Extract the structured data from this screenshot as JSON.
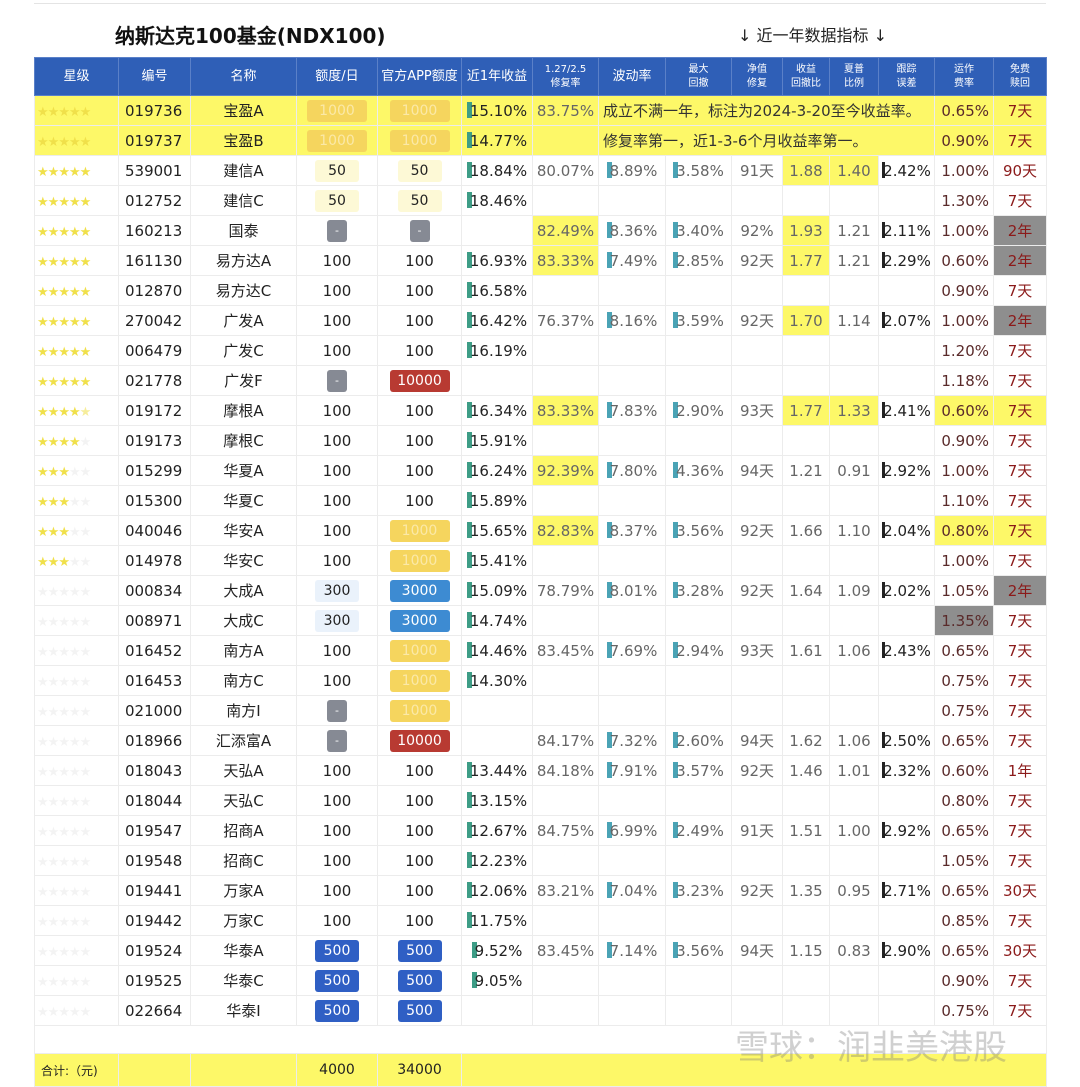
{
  "title": "纳斯达克100基金(NDX100)",
  "subtitle": "↓ 近一年数据指标 ↓",
  "watermark": "雪球：润韭美港股",
  "colors": {
    "header": "#2f5fb7",
    "highlight": "#fdf868",
    "gray_cell": "#8e8e8e",
    "red_pill": "#b83a32",
    "blue_pill": "#3d8bd2",
    "navy_pill": "#2f5fc4",
    "gold_pill": "#f5d55e"
  },
  "headers": [
    "星级",
    "编号",
    "名称",
    "额度/日",
    "官方APP额度",
    "近1年收益",
    "1.27/2.5 修复率",
    "波动率",
    "最大 回撤",
    "净值 修复",
    "收益 回撤比",
    "夏普 比例",
    "跟踪 误差",
    "运作 费率",
    "免费 赎回"
  ],
  "rows": [
    {
      "stars": 5,
      "code": "019736",
      "name": "宝盈A",
      "quota": "1000",
      "qs": "gold",
      "app": "1000",
      "as": "gold",
      "ret": "15.10%",
      "repair": "83.75%",
      "note": "成立不满一年，标注为2024-3-20至今收益率。",
      "fee": "0.65%",
      "redeem": "7天",
      "rowhl": true
    },
    {
      "stars": 5,
      "code": "019737",
      "name": "宝盈B",
      "quota": "1000",
      "qs": "gold",
      "app": "1000",
      "as": "gold",
      "ret": "14.77%",
      "repair": "",
      "note": "修复率第一，近1-3-6个月收益率第一。",
      "fee": "0.90%",
      "redeem": "7天",
      "rowhl": true
    },
    {
      "stars": 5,
      "code": "539001",
      "name": "建信A",
      "quota": "50",
      "qs": "ly",
      "app": "50",
      "as": "ly",
      "ret": "18.84%",
      "repair": "80.07%",
      "vol": "8.89%",
      "dd": "3.58%",
      "nav": "91天",
      "ratio": "1.88",
      "sharpe": "1.40",
      "track": "2.42%",
      "fee": "1.00%",
      "redeem": "90天",
      "hl": [
        "ratio",
        "sharpe"
      ]
    },
    {
      "stars": 5,
      "code": "012752",
      "name": "建信C",
      "quota": "50",
      "qs": "ly",
      "app": "50",
      "as": "ly",
      "ret": "18.46%",
      "fee": "1.30%",
      "redeem": "7天"
    },
    {
      "stars": 5,
      "code": "160213",
      "name": "国泰",
      "quota": "-",
      "qs": "gray",
      "app": "-",
      "as": "gray",
      "ret": "",
      "repair": "82.49%",
      "vol": "8.36%",
      "dd": "3.40%",
      "nav": "92%",
      "ratio": "1.93",
      "sharpe": "1.21",
      "track": "2.11%",
      "fee": "1.00%",
      "redeem": "2年",
      "hl": [
        "repair",
        "ratio"
      ],
      "gr": [
        "redeem"
      ]
    },
    {
      "stars": 5,
      "code": "161130",
      "name": "易方达A",
      "quota": "100",
      "app": "100",
      "ret": "16.93%",
      "repair": "83.33%",
      "vol": "7.49%",
      "dd": "2.85%",
      "nav": "92天",
      "ratio": "1.77",
      "sharpe": "1.21",
      "track": "2.29%",
      "fee": "0.60%",
      "redeem": "2年",
      "hl": [
        "repair",
        "ratio"
      ],
      "gr": [
        "redeem"
      ]
    },
    {
      "stars": 5,
      "code": "012870",
      "name": "易方达C",
      "quota": "100",
      "app": "100",
      "ret": "16.58%",
      "fee": "0.90%",
      "redeem": "7天"
    },
    {
      "stars": 5,
      "code": "270042",
      "name": "广发A",
      "quota": "100",
      "app": "100",
      "ret": "16.42%",
      "repair": "76.37%",
      "vol": "8.16%",
      "dd": "3.59%",
      "nav": "92天",
      "ratio": "1.70",
      "sharpe": "1.14",
      "track": "2.07%",
      "fee": "1.00%",
      "redeem": "2年",
      "hl": [
        "ratio"
      ],
      "gr": [
        "redeem"
      ]
    },
    {
      "stars": 5,
      "code": "006479",
      "name": "广发C",
      "quota": "100",
      "app": "100",
      "ret": "16.19%",
      "fee": "1.20%",
      "redeem": "7天"
    },
    {
      "stars": 5,
      "code": "021778",
      "name": "广发F",
      "quota": "-",
      "qs": "gray",
      "app": "10000",
      "as": "red",
      "fee": "1.18%",
      "redeem": "7天"
    },
    {
      "stars": 4.5,
      "code": "019172",
      "name": "摩根A",
      "quota": "100",
      "app": "100",
      "ret": "16.34%",
      "repair": "83.33%",
      "vol": "7.83%",
      "dd": "2.90%",
      "nav": "93天",
      "ratio": "1.77",
      "sharpe": "1.33",
      "track": "2.41%",
      "fee": "0.60%",
      "redeem": "7天",
      "hl": [
        "repair",
        "ratio",
        "sharpe",
        "fee",
        "redeem"
      ]
    },
    {
      "stars": 4,
      "code": "019173",
      "name": "摩根C",
      "quota": "100",
      "app": "100",
      "ret": "15.91%",
      "fee": "0.90%",
      "redeem": "7天"
    },
    {
      "stars": 3,
      "code": "015299",
      "name": "华夏A",
      "quota": "100",
      "app": "100",
      "ret": "16.24%",
      "repair": "92.39%",
      "vol": "7.80%",
      "dd": "4.36%",
      "nav": "94天",
      "ratio": "1.21",
      "sharpe": "0.91",
      "track": "2.92%",
      "fee": "1.00%",
      "redeem": "7天",
      "hl": [
        "repair"
      ]
    },
    {
      "stars": 3,
      "code": "015300",
      "name": "华夏C",
      "quota": "100",
      "app": "100",
      "ret": "15.89%",
      "fee": "1.10%",
      "redeem": "7天"
    },
    {
      "stars": 3,
      "code": "040046",
      "name": "华安A",
      "quota": "100",
      "app": "1000",
      "as": "gold",
      "ret": "15.65%",
      "repair": "82.83%",
      "vol": "8.37%",
      "dd": "3.56%",
      "nav": "92天",
      "ratio": "1.66",
      "sharpe": "1.10",
      "track": "2.04%",
      "fee": "0.80%",
      "redeem": "7天",
      "hl": [
        "repair",
        "fee",
        "redeem"
      ]
    },
    {
      "stars": 3,
      "code": "014978",
      "name": "华安C",
      "quota": "100",
      "app": "1000",
      "as": "gold",
      "ret": "15.41%",
      "fee": "1.00%",
      "redeem": "7天"
    },
    {
      "stars": 0,
      "code": "000834",
      "name": "大成A",
      "quota": "300",
      "qs": "lb",
      "app": "3000",
      "as": "blue",
      "ret": "15.09%",
      "repair": "78.79%",
      "vol": "8.01%",
      "dd": "3.28%",
      "nav": "92天",
      "ratio": "1.64",
      "sharpe": "1.09",
      "track": "2.02%",
      "fee": "1.05%",
      "redeem": "2年",
      "gr": [
        "redeem"
      ]
    },
    {
      "stars": 0,
      "code": "008971",
      "name": "大成C",
      "quota": "300",
      "qs": "lb",
      "app": "3000",
      "as": "blue",
      "ret": "14.74%",
      "fee": "1.35%",
      "redeem": "7天",
      "gr": [
        "fee"
      ]
    },
    {
      "stars": 0,
      "code": "016452",
      "name": "南方A",
      "quota": "100",
      "app": "1000",
      "as": "gold",
      "ret": "14.46%",
      "repair": "83.45%",
      "vol": "7.69%",
      "dd": "2.94%",
      "nav": "93天",
      "ratio": "1.61",
      "sharpe": "1.06",
      "track": "2.43%",
      "fee": "0.65%",
      "redeem": "7天"
    },
    {
      "stars": 0,
      "code": "016453",
      "name": "南方C",
      "quota": "100",
      "app": "1000",
      "as": "gold",
      "ret": "14.30%",
      "fee": "0.75%",
      "redeem": "7天"
    },
    {
      "stars": 0,
      "code": "021000",
      "name": "南方I",
      "quota": "-",
      "qs": "gray",
      "app": "1000",
      "as": "gold",
      "fee": "0.75%",
      "redeem": "7天"
    },
    {
      "stars": 0,
      "code": "018966",
      "name": "汇添富A",
      "quota": "-",
      "qs": "gray",
      "app": "10000",
      "as": "red",
      "repair": "84.17%",
      "vol": "7.32%",
      "dd": "2.60%",
      "nav": "94天",
      "ratio": "1.62",
      "sharpe": "1.06",
      "track": "2.50%",
      "fee": "0.65%",
      "redeem": "7天"
    },
    {
      "stars": 0,
      "code": "018043",
      "name": "天弘A",
      "quota": "100",
      "app": "100",
      "ret": "13.44%",
      "repair": "84.18%",
      "vol": "7.91%",
      "dd": "3.57%",
      "nav": "92天",
      "ratio": "1.46",
      "sharpe": "1.01",
      "track": "2.32%",
      "fee": "0.60%",
      "redeem": "1年"
    },
    {
      "stars": 0,
      "code": "018044",
      "name": "天弘C",
      "quota": "100",
      "app": "100",
      "ret": "13.15%",
      "fee": "0.80%",
      "redeem": "7天"
    },
    {
      "stars": 0,
      "code": "019547",
      "name": "招商A",
      "quota": "100",
      "app": "100",
      "ret": "12.67%",
      "repair": "84.75%",
      "vol": "6.99%",
      "dd": "2.49%",
      "nav": "91天",
      "ratio": "1.51",
      "sharpe": "1.00",
      "track": "2.92%",
      "fee": "0.65%",
      "redeem": "7天"
    },
    {
      "stars": 0,
      "code": "019548",
      "name": "招商C",
      "quota": "100",
      "app": "100",
      "ret": "12.23%",
      "fee": "1.05%",
      "redeem": "7天"
    },
    {
      "stars": 0,
      "code": "019441",
      "name": "万家A",
      "quota": "100",
      "app": "100",
      "ret": "12.06%",
      "repair": "83.21%",
      "vol": "7.04%",
      "dd": "3.23%",
      "nav": "92天",
      "ratio": "1.35",
      "sharpe": "0.95",
      "track": "2.71%",
      "fee": "0.65%",
      "redeem": "30天"
    },
    {
      "stars": 0,
      "code": "019442",
      "name": "万家C",
      "quota": "100",
      "app": "100",
      "ret": "11.75%",
      "fee": "0.85%",
      "redeem": "7天"
    },
    {
      "stars": 0,
      "code": "019524",
      "name": "华泰A",
      "quota": "500",
      "qs": "navy",
      "app": "500",
      "as": "navy",
      "ret": "9.52%",
      "repair": "83.45%",
      "vol": "7.14%",
      "dd": "3.56%",
      "nav": "94天",
      "ratio": "1.15",
      "sharpe": "0.83",
      "track": "2.90%",
      "fee": "0.65%",
      "redeem": "30天"
    },
    {
      "stars": 0,
      "code": "019525",
      "name": "华泰C",
      "quota": "500",
      "qs": "navy",
      "app": "500",
      "as": "navy",
      "ret": "9.05%",
      "fee": "0.90%",
      "redeem": "7天"
    },
    {
      "stars": 0,
      "code": "022664",
      "name": "华泰I",
      "quota": "500",
      "qs": "navy",
      "app": "500",
      "as": "navy",
      "fee": "0.75%",
      "redeem": "7天"
    }
  ],
  "total": {
    "label": "合计:（元)",
    "quota": "4000",
    "app": "34000"
  }
}
